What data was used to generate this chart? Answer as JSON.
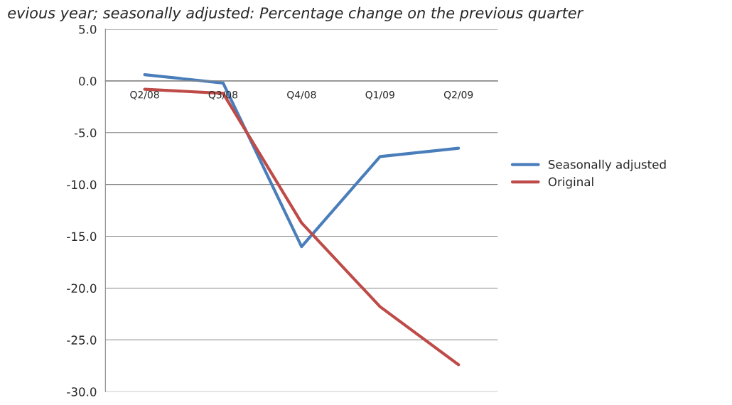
{
  "chart_data": {
    "type": "line",
    "title": "evious year; seasonally adjusted: Percentage change on the previous quarter",
    "categories": [
      "Q2/08",
      "Q3/08",
      "Q4/08",
      "Q1/09",
      "Q2/09"
    ],
    "series": [
      {
        "name": "Seasonally adjusted",
        "color": "#4a7ebb",
        "values": [
          0.6,
          -0.2,
          -16.0,
          -7.3,
          -6.5
        ]
      },
      {
        "name": "Original",
        "color": "#be4b48",
        "values": [
          -0.8,
          -1.2,
          -13.7,
          -21.8,
          -27.4
        ]
      }
    ],
    "ylim": [
      -30,
      5
    ],
    "yticks": [
      {
        "value": 5,
        "label": "5.0"
      },
      {
        "value": 0,
        "label": "0.0"
      },
      {
        "value": -5,
        "label": "-5.0"
      },
      {
        "value": -10,
        "label": "-10.0"
      },
      {
        "value": -15,
        "label": "-15.0"
      },
      {
        "value": -20,
        "label": "-20.0"
      },
      {
        "value": -25,
        "label": "-25.0"
      },
      {
        "value": -30,
        "label": "-30.0"
      }
    ],
    "grid": "y",
    "legend": "right",
    "marker": "none",
    "line_style": "solid"
  }
}
